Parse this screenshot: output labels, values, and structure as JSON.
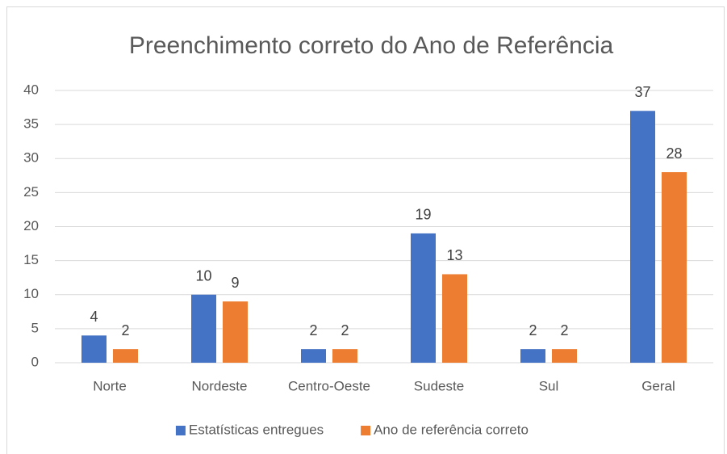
{
  "chart_data": {
    "type": "bar",
    "title": "Preenchimento correto do Ano de Referência",
    "categories": [
      "Norte",
      "Nordeste",
      "Centro-Oeste",
      "Sudeste",
      "Sul",
      "Geral"
    ],
    "series": [
      {
        "name": "Estatísticas entregues",
        "color": "#4472c4",
        "values": [
          4,
          10,
          2,
          19,
          2,
          37
        ]
      },
      {
        "name": "Ano de referência correto",
        "color": "#ed7d31",
        "values": [
          2,
          9,
          2,
          13,
          2,
          28
        ]
      }
    ],
    "ylim": [
      0,
      40
    ],
    "yticks": [
      0,
      5,
      10,
      15,
      20,
      25,
      30,
      35,
      40
    ],
    "grid": true,
    "legend": "bottom"
  }
}
